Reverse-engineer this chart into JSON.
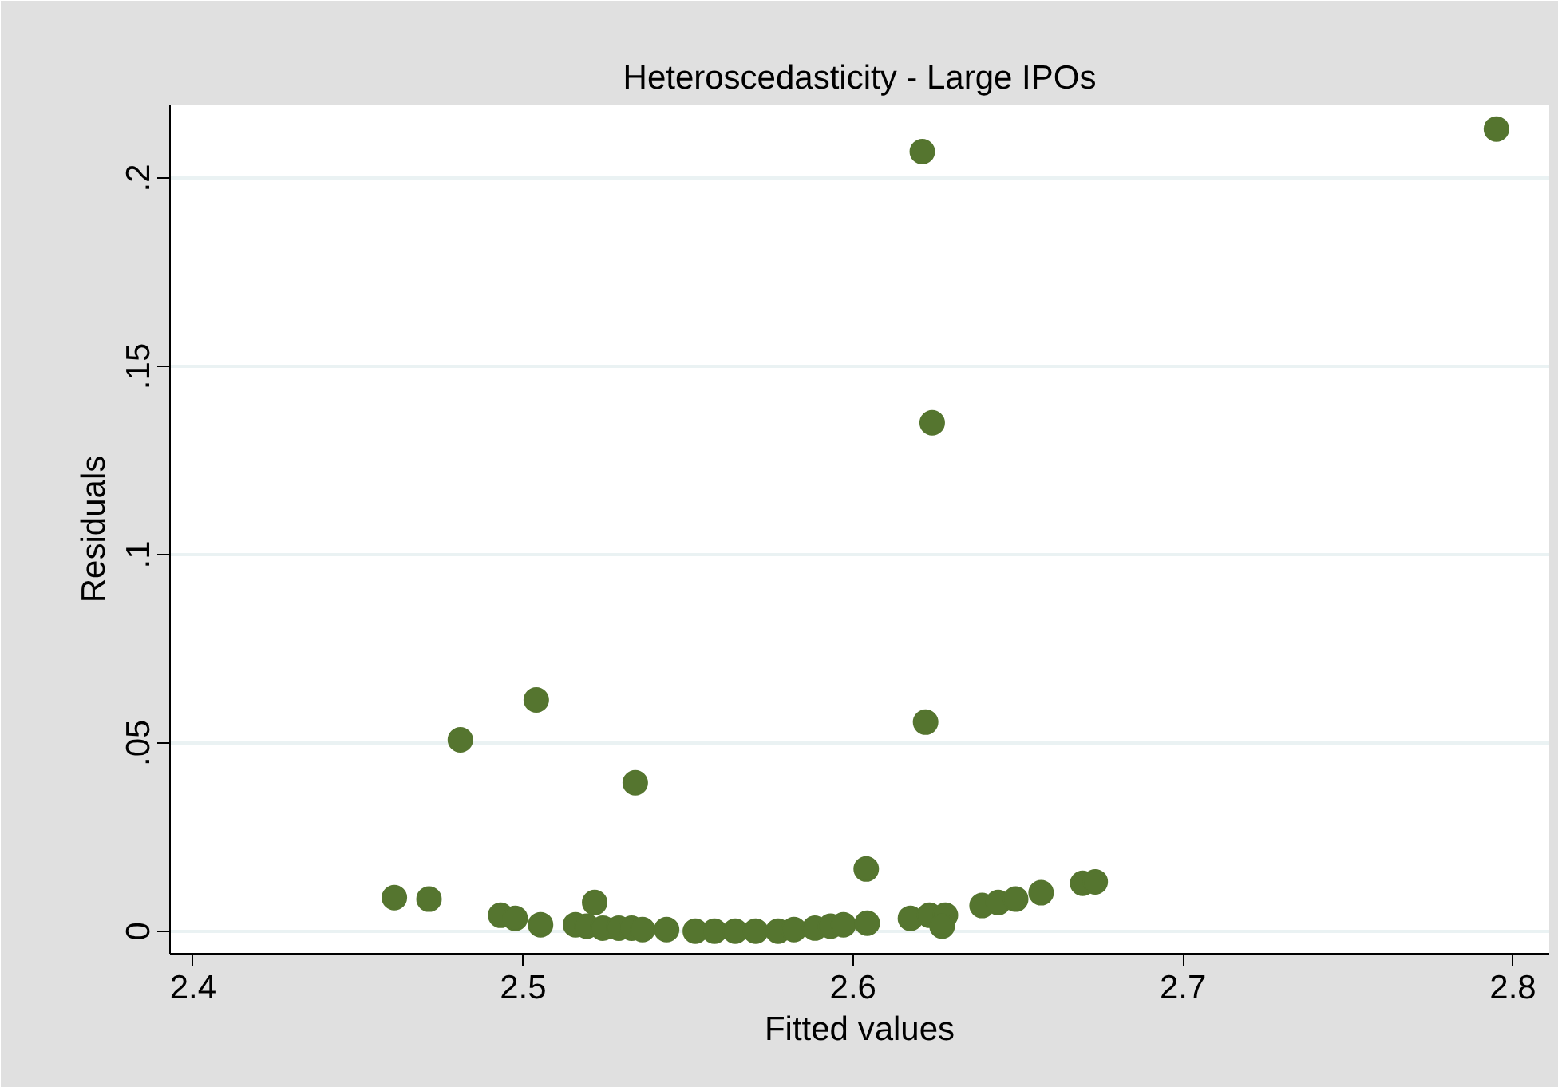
{
  "chart_data": {
    "type": "scatter",
    "title": "Heteroscedasticity - Large IPOs",
    "xlabel": "Fitted values",
    "ylabel": "Residuals",
    "xlim": [
      2.393,
      2.811
    ],
    "ylim": [
      -0.006,
      0.2195
    ],
    "xticks": [
      2.4,
      2.5,
      2.6,
      2.7,
      2.8
    ],
    "yticks": [
      {
        "value": 0,
        "label": "0"
      },
      {
        "value": 0.05,
        "label": ".05"
      },
      {
        "value": 0.1,
        "label": ".1"
      },
      {
        "value": 0.15,
        "label": ".15"
      },
      {
        "value": 0.2,
        "label": ".2"
      }
    ],
    "grid": "y",
    "marker": "circle",
    "series": [
      {
        "color": "#55752f",
        "x": [
          2.461,
          2.4715,
          2.481,
          2.504,
          2.534,
          2.621,
          2.624,
          2.622,
          2.604,
          2.795,
          2.4932,
          2.4976,
          2.5053,
          2.5159,
          2.5193,
          2.5217,
          2.5242,
          2.529,
          2.5329,
          2.5362,
          2.5435,
          2.5522,
          2.558,
          2.5643,
          2.5705,
          2.5773,
          2.5821,
          2.5884,
          2.5932,
          2.5971,
          2.6043,
          2.6174,
          2.6232,
          2.628,
          2.627,
          2.6391,
          2.644,
          2.6493,
          2.657,
          2.6696,
          2.6734
        ],
        "values": [
          0.0089,
          0.0085,
          0.0508,
          0.0614,
          0.0394,
          0.207,
          0.135,
          0.0555,
          0.0165,
          0.213,
          0.0042,
          0.0034,
          0.0017,
          0.0017,
          0.0013,
          0.0076,
          0.0008,
          0.0008,
          0.0008,
          0.0004,
          0.0004,
          0.0,
          0.0,
          0.0,
          0.0,
          0.0,
          0.0004,
          0.0008,
          0.0013,
          0.0017,
          0.0021,
          0.0034,
          0.0042,
          0.0042,
          0.0013,
          0.0068,
          0.0076,
          0.0085,
          0.0102,
          0.0127,
          0.0131
        ]
      }
    ]
  }
}
